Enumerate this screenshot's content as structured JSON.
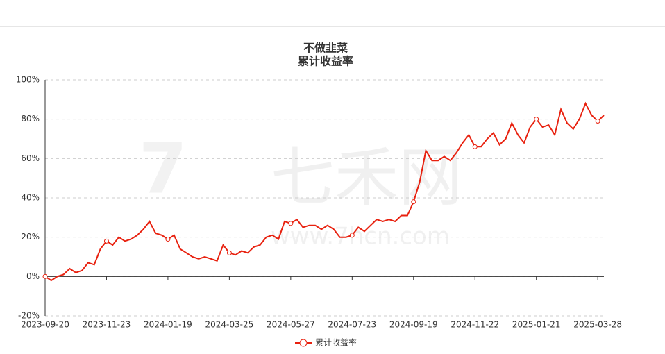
{
  "chart_data": {
    "type": "line",
    "title": "不做韭菜",
    "subtitle": "累计收益率",
    "watermark": {
      "text": "七禾网",
      "url": "www.7hcn.com"
    },
    "categories": [
      "2023-09-20",
      null,
      null,
      null,
      null,
      null,
      null,
      null,
      null,
      null,
      "2023-11-23",
      null,
      null,
      null,
      null,
      null,
      null,
      null,
      null,
      null,
      "2024-01-19",
      null,
      null,
      null,
      null,
      null,
      null,
      null,
      null,
      null,
      "2024-03-25",
      null,
      null,
      null,
      null,
      null,
      null,
      null,
      null,
      null,
      "2024-05-27",
      null,
      null,
      null,
      null,
      null,
      null,
      null,
      null,
      null,
      "2024-07-23",
      null,
      null,
      null,
      null,
      null,
      null,
      null,
      null,
      null,
      "2024-09-19",
      null,
      null,
      null,
      null,
      null,
      null,
      null,
      null,
      null,
      "2024-11-22",
      null,
      null,
      null,
      null,
      null,
      null,
      null,
      null,
      null,
      "2025-01-21",
      null,
      null,
      null,
      null,
      null,
      null,
      null,
      null,
      null,
      "2025-03-28",
      null
    ],
    "series": [
      {
        "name": "累计收益率",
        "color": "#e8210f",
        "values": [
          0,
          -2,
          0,
          1,
          4,
          2,
          3,
          7,
          6,
          14,
          18,
          16,
          20,
          18,
          19,
          21,
          24,
          28,
          22,
          21,
          19,
          21,
          14,
          12,
          10,
          9,
          10,
          9,
          8,
          16,
          12,
          11,
          13,
          12,
          15,
          16,
          20,
          21,
          19,
          28,
          27,
          29,
          25,
          26,
          26,
          24,
          26,
          24,
          20,
          20,
          21,
          25,
          23,
          26,
          29,
          28,
          29,
          28,
          31,
          31,
          38,
          48,
          64,
          59,
          59,
          61,
          59,
          63,
          68,
          72,
          66,
          66,
          70,
          73,
          67,
          70,
          78,
          72,
          68,
          76,
          80,
          76,
          77,
          72,
          85,
          78,
          75,
          80,
          88,
          82,
          79,
          82
        ]
      }
    ],
    "ylim": [
      -20,
      100
    ],
    "yticks": [
      {
        "value": -20,
        "label": "-20%"
      },
      {
        "value": 0,
        "label": "0%"
      },
      {
        "value": 20,
        "label": "20%"
      },
      {
        "value": 40,
        "label": "40%"
      },
      {
        "value": 60,
        "label": "60%"
      },
      {
        "value": 80,
        "label": "80%"
      },
      {
        "value": 100,
        "label": "100%"
      }
    ],
    "grid": true,
    "legend": "bottom"
  }
}
